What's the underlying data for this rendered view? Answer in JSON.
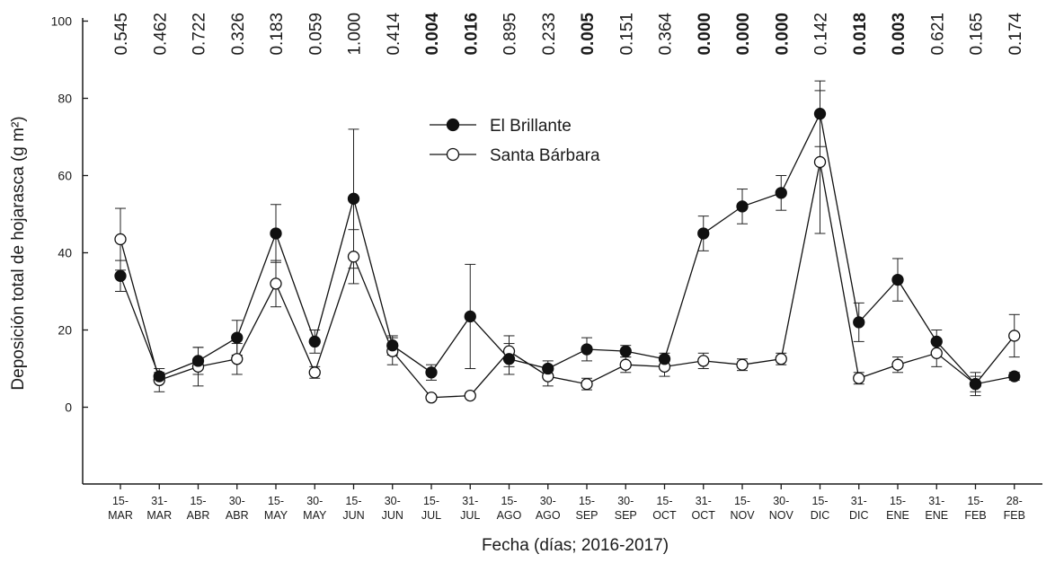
{
  "chart_data": {
    "type": "line",
    "xlabel": "Fecha (días; 2016-2017)",
    "ylabel": "Deposición total de hojarasca (g m²)",
    "ylim": [
      -20,
      100
    ],
    "yticks": [
      "0",
      "20",
      "40",
      "60",
      "80",
      "100"
    ],
    "ytick_values": [
      0,
      20,
      40,
      60,
      80,
      100
    ],
    "grid": false,
    "legend_position": "top-center",
    "categories": [
      [
        "15-",
        "MAR"
      ],
      [
        "31-",
        "MAR"
      ],
      [
        "15-",
        "ABR"
      ],
      [
        "30-",
        "ABR"
      ],
      [
        "15-",
        "MAY"
      ],
      [
        "30-",
        "MAY"
      ],
      [
        "15-",
        "JUN"
      ],
      [
        "30-",
        "JUN"
      ],
      [
        "15-",
        "JUL"
      ],
      [
        "31-",
        "JUL"
      ],
      [
        "15-",
        "AGO"
      ],
      [
        "30-",
        "AGO"
      ],
      [
        "15-",
        "SEP"
      ],
      [
        "30-",
        "SEP"
      ],
      [
        "15-",
        "OCT"
      ],
      [
        "31-",
        "OCT"
      ],
      [
        "15-",
        "NOV"
      ],
      [
        "30-",
        "NOV"
      ],
      [
        "15-",
        "DIC"
      ],
      [
        "31-",
        "DIC"
      ],
      [
        "15-",
        "ENE"
      ],
      [
        "31-",
        "ENE"
      ],
      [
        "15-",
        "FEB"
      ],
      [
        "28-",
        "FEB"
      ]
    ],
    "p_values": [
      {
        "text": "0.545",
        "sig": false
      },
      {
        "text": "0.462",
        "sig": false
      },
      {
        "text": "0.722",
        "sig": false
      },
      {
        "text": "0.326",
        "sig": false
      },
      {
        "text": "0.183",
        "sig": false
      },
      {
        "text": "0.059",
        "sig": false
      },
      {
        "text": "1.000",
        "sig": false
      },
      {
        "text": "0.414",
        "sig": false
      },
      {
        "text": "0.004",
        "sig": true
      },
      {
        "text": "0.016",
        "sig": true
      },
      {
        "text": "0.895",
        "sig": false
      },
      {
        "text": "0.233",
        "sig": false
      },
      {
        "text": "0.005",
        "sig": true
      },
      {
        "text": "0.151",
        "sig": false
      },
      {
        "text": "0.364",
        "sig": false
      },
      {
        "text": "0.000",
        "sig": true
      },
      {
        "text": "0.000",
        "sig": true
      },
      {
        "text": "0.000",
        "sig": true
      },
      {
        "text": "0.142",
        "sig": false
      },
      {
        "text": "0.018",
        "sig": true
      },
      {
        "text": "0.003",
        "sig": true
      },
      {
        "text": "0.621",
        "sig": false
      },
      {
        "text": "0.165",
        "sig": false
      },
      {
        "text": "0.174",
        "sig": false
      }
    ],
    "series": [
      {
        "name": "El Brillante",
        "marker": "filled-circle",
        "color": "#111111",
        "values": [
          34,
          8,
          12,
          18,
          45,
          17,
          54,
          16,
          9,
          23.5,
          12.5,
          10,
          15,
          14.5,
          12.5,
          45,
          52,
          55.5,
          76,
          22,
          33,
          17,
          6,
          8
        ],
        "errors": [
          4,
          1,
          3.5,
          4.5,
          7.5,
          3,
          18,
          2.5,
          2,
          13.5,
          4,
          2,
          3,
          1.5,
          1.5,
          4.5,
          4.5,
          4.5,
          8.5,
          5,
          5.5,
          3,
          2,
          1
        ]
      },
      {
        "name": "Santa Bárbara",
        "marker": "open-circle",
        "color": "#111111",
        "values": [
          43.5,
          7,
          10.5,
          12.5,
          32,
          9,
          39,
          14.5,
          2.5,
          3,
          14.5,
          8,
          6,
          11,
          10.5,
          12,
          11,
          12.5,
          63.5,
          7.5,
          11,
          14,
          6,
          18.5
        ],
        "errors": [
          8,
          3,
          5,
          4,
          6,
          1.5,
          7,
          3.5,
          0.5,
          0.5,
          4,
          2.5,
          1.5,
          2,
          2.5,
          2,
          1.5,
          1.5,
          18.5,
          1.5,
          2,
          3.5,
          3,
          5.5
        ]
      }
    ]
  }
}
